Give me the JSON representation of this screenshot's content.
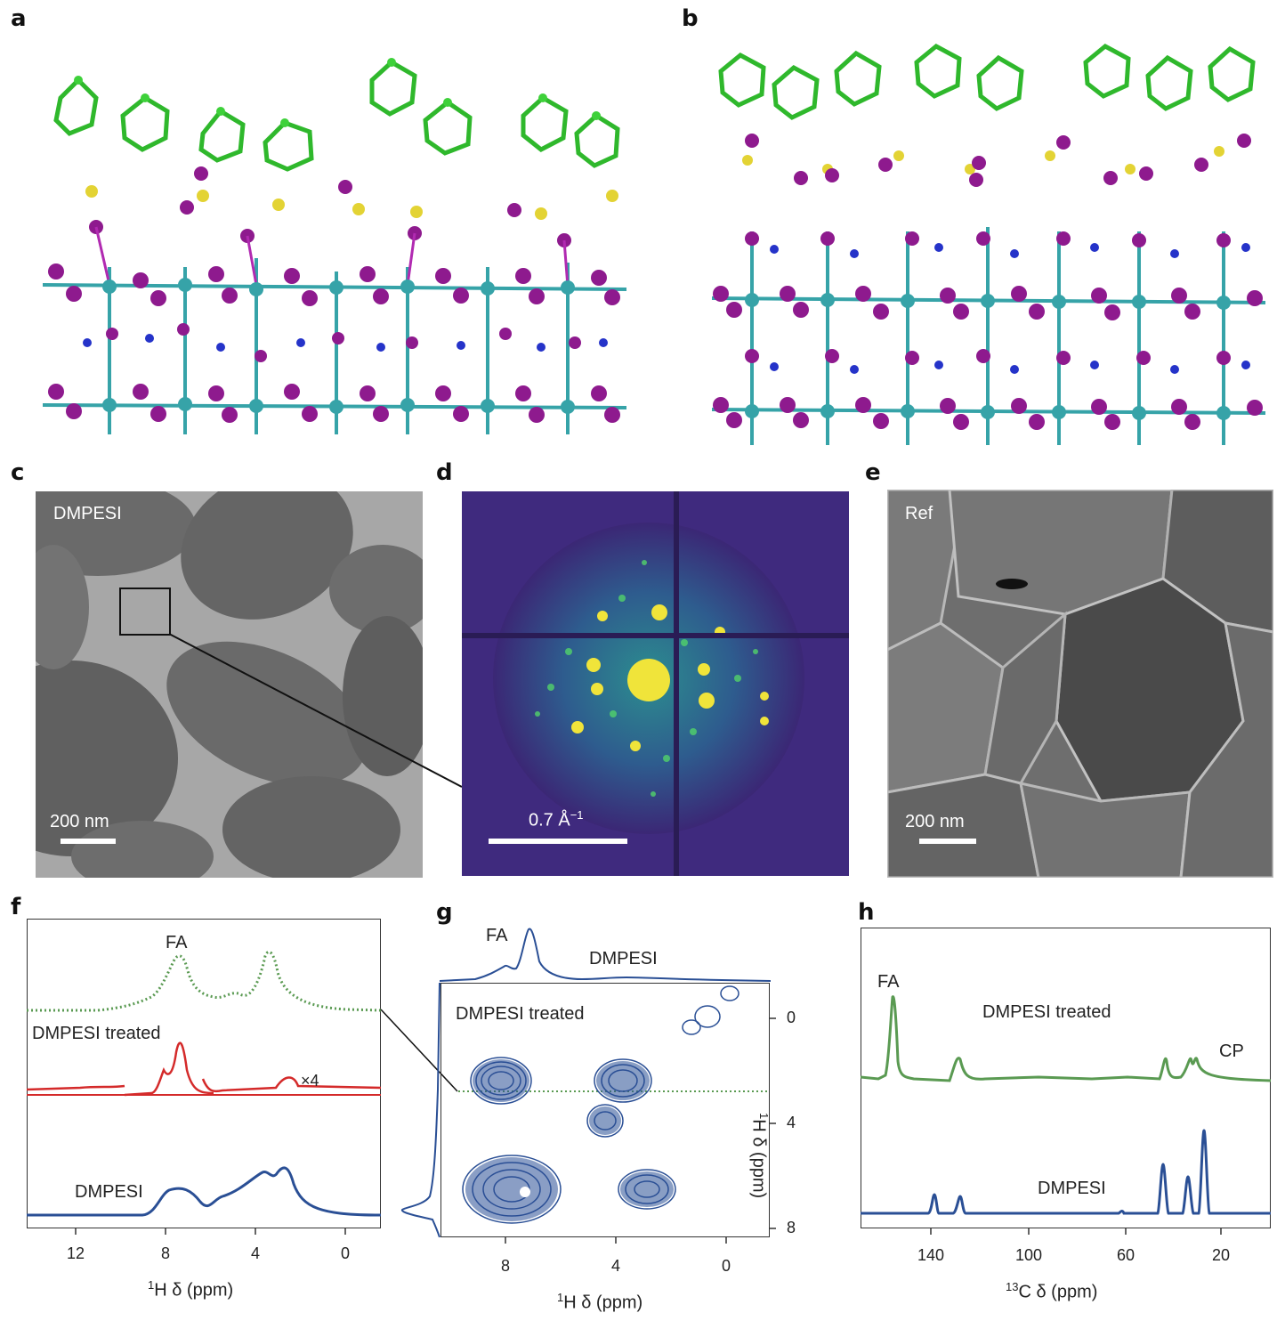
{
  "panels": {
    "a": "a",
    "b": "b",
    "c": "c",
    "d": "d",
    "e": "e",
    "f": "f",
    "g": "g",
    "h": "h"
  },
  "panel_c": {
    "label": "DMPESI",
    "scalebar": "200 nm"
  },
  "panel_d": {
    "scalebar": "0.7 Å",
    "scalebar_sup": "−1"
  },
  "panel_e": {
    "label": "Ref",
    "scalebar": "200 nm"
  },
  "panel_f": {
    "labels": {
      "fa": "FA",
      "treated": "DMPESI treated",
      "factor": "×4",
      "dmpesi": "DMPESI"
    },
    "xticks": [
      "12",
      "8",
      "4",
      "0"
    ],
    "xlabel_sup": "1",
    "xlabel": "H δ (ppm)"
  },
  "panel_g": {
    "labels": {
      "fa": "FA",
      "dmpesi": "DMPESI",
      "treated": "DMPESI treated"
    },
    "xticks": [
      "8",
      "4",
      "0"
    ],
    "yticks": [
      "0",
      "4",
      "8"
    ],
    "xlabel_sup": "1",
    "xlabel": "H δ (ppm)",
    "ylabel_sup": "1",
    "ylabel": "H δ (ppm)"
  },
  "panel_h": {
    "labels": {
      "fa": "FA",
      "treated": "DMPESI treated",
      "cp": "CP",
      "dmpesi": "DMPESI"
    },
    "xticks": [
      "140",
      "100",
      "60",
      "20"
    ],
    "xlabel_sup": "13",
    "xlabel": "C δ (ppm)"
  },
  "colors": {
    "green_trace": "#5a9a52",
    "red_trace": "#d42a2a",
    "blue_trace": "#2a4f95",
    "iodide": "#8e1a8e",
    "lead": "#36a3a8",
    "carbon": "#3ed13a",
    "sulfur": "#e3d334",
    "nitrogen": "#2533c9"
  }
}
